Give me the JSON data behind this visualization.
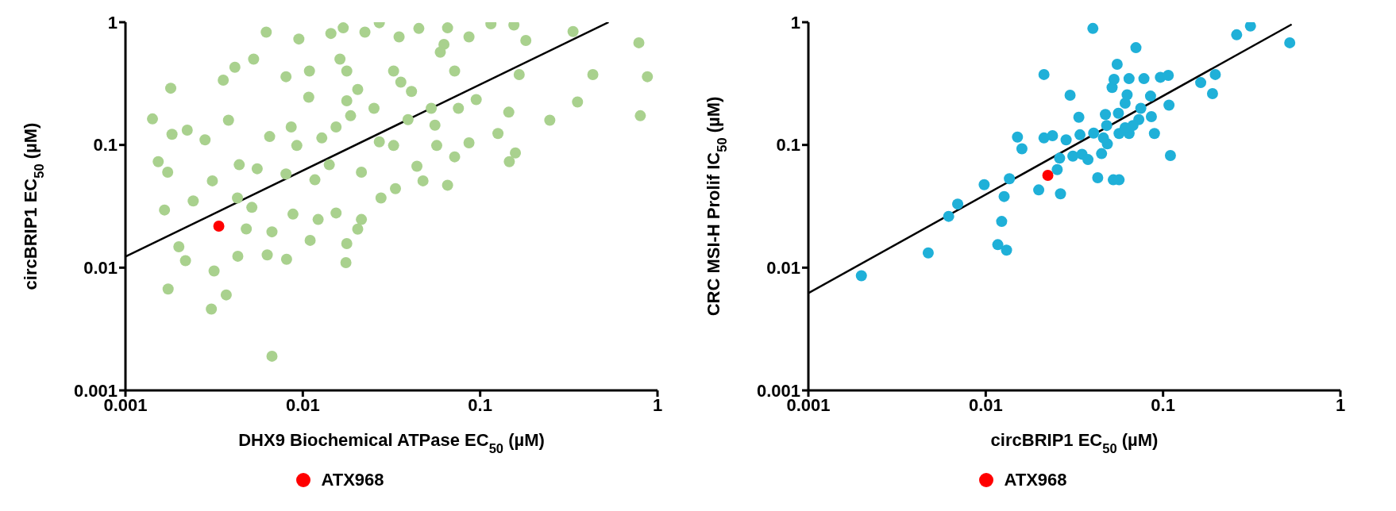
{
  "chart_data": [
    {
      "type": "scatter",
      "xlabel": "DHX9 Biochemical ATPase EC$_{50}$ (µM)",
      "ylabel": "circBRIP1 EC$_{50}$ (µM)",
      "log": "xy",
      "xlim": [
        0.001,
        1
      ],
      "ylim": [
        0.001,
        1
      ],
      "xticks": [
        0.001,
        0.01,
        0.1,
        1
      ],
      "yticks": [
        0.001,
        0.01,
        0.1,
        1
      ],
      "grid": false,
      "legend": "bottom",
      "series": [
        {
          "marker": "circle",
          "color": "#a9d18e",
          "x": [
            0.0018,
            0.00142,
            0.00183,
            0.00223,
            0.00281,
            0.00153,
            0.00173,
            0.00166,
            0.00241,
            0.00309,
            0.00381,
            0.00356,
            0.00414,
            0.00528,
            0.00622,
            0.00804,
            0.0095,
            0.0109,
            0.0108,
            0.0144,
            0.0169,
            0.0224,
            0.027,
            0.0349,
            0.0451,
            0.0655,
            0.0625,
            0.0865,
            0.115,
            0.155,
            0.181,
            0.334,
            0.785,
            0.877,
            0.8,
            0.432,
            0.354,
            0.247,
            0.145,
            0.126,
            0.158,
            0.146,
            0.166,
            0.095,
            0.0865,
            0.0718,
            0.0655,
            0.0476,
            0.0556,
            0.0569,
            0.044,
            0.0333,
            0.0276,
            0.0214,
            0.0204,
            0.0177,
            0.0175,
            0.0154,
            0.0122,
            0.011,
            0.0088,
            0.0081,
            0.0063,
            0.0067,
            0.0048,
            0.0043,
            0.0037,
            0.00316,
            0.00305,
            0.00174,
            0.002,
            0.00218,
            0.0067,
            0.00516,
            0.00428,
            0.00438,
            0.00553,
            0.00804,
            0.00925,
            0.0086,
            0.0128,
            0.0154,
            0.0186,
            0.0177,
            0.0204,
            0.0252,
            0.027,
            0.0325,
            0.0357,
            0.041,
            0.0177,
            0.0162,
            0.053,
            0.0718,
            0.0754,
            0.0392,
            0.0325,
            0.0214,
            0.0141,
            0.0117,
            0.0596,
            0.0065
          ],
          "values": [
            0.29,
            0.163,
            0.122,
            0.132,
            0.11,
            0.073,
            0.06,
            0.0295,
            0.035,
            0.051,
            0.159,
            0.337,
            0.43,
            0.5,
            0.83,
            0.36,
            0.73,
            0.4,
            0.245,
            0.81,
            0.9,
            0.83,
            0.99,
            0.76,
            0.89,
            0.9,
            0.66,
            0.76,
            0.97,
            0.95,
            0.71,
            0.84,
            0.68,
            0.36,
            0.173,
            0.374,
            0.224,
            0.159,
            0.185,
            0.124,
            0.086,
            0.073,
            0.374,
            0.234,
            0.104,
            0.08,
            0.047,
            0.051,
            0.145,
            0.099,
            0.067,
            0.044,
            0.037,
            0.0247,
            0.0206,
            0.0157,
            0.011,
            0.0279,
            0.0247,
            0.0167,
            0.0273,
            0.0117,
            0.0127,
            0.0196,
            0.0207,
            0.0124,
            0.006,
            0.0094,
            0.0046,
            0.0067,
            0.0148,
            0.0114,
            0.0019,
            0.031,
            0.037,
            0.069,
            0.064,
            0.058,
            0.099,
            0.14,
            0.114,
            0.14,
            0.173,
            0.229,
            0.283,
            0.199,
            0.106,
            0.4,
            0.325,
            0.273,
            0.4,
            0.5,
            0.199,
            0.4,
            0.199,
            0.161,
            0.099,
            0.06,
            0.069,
            0.052,
            0.57,
            0.117
          ]
        },
        {
          "type": "line",
          "marker": "none",
          "color": "#000000",
          "x": [
            0.001,
            0.53
          ],
          "values": [
            0.0123,
            1
          ]
        },
        {
          "name": "ATX968",
          "marker": "circle",
          "color": "#ff0000",
          "x": [
            0.00336
          ],
          "values": [
            0.0218
          ]
        }
      ]
    },
    {
      "type": "scatter",
      "xlabel": "circBRIP1 EC$_{50}$ (µM)",
      "ylabel": "CRC MSI-H Prolif IC$_{50}$ (µM)",
      "log": "xy",
      "xlim": [
        0.001,
        1
      ],
      "ylim": [
        0.001,
        1
      ],
      "xticks": [
        0.001,
        0.01,
        0.1,
        1
      ],
      "yticks": [
        0.001,
        0.01,
        0.1,
        1
      ],
      "grid": false,
      "legend": "bottom",
      "series": [
        {
          "marker": "circle",
          "color": "#1fb0d8",
          "x": [
            0.00199,
            0.00474,
            0.00618,
            0.00695,
            0.0098,
            0.0136,
            0.0127,
            0.0123,
            0.0117,
            0.0131,
            0.0151,
            0.016,
            0.0213,
            0.0213,
            0.0238,
            0.0199,
            0.0253,
            0.0261,
            0.0264,
            0.0299,
            0.0284,
            0.0335,
            0.031,
            0.0349,
            0.0377,
            0.034,
            0.0406,
            0.0402,
            0.0428,
            0.045,
            0.0473,
            0.0481,
            0.0485,
            0.0516,
            0.0529,
            0.0551,
            0.0524,
            0.0565,
            0.056,
            0.0565,
            0.0611,
            0.0627,
            0.0643,
            0.0643,
            0.0703,
            0.073,
            0.0749,
            0.078,
            0.085,
            0.0859,
            0.0894,
            0.0966,
            0.107,
            0.108,
            0.11,
            0.0676,
            0.163,
            0.19,
            0.197,
            0.26,
            0.311,
            0.518,
            0.0611,
            0.0461
          ],
          "values": [
            0.0086,
            0.0132,
            0.0262,
            0.033,
            0.0474,
            0.053,
            0.038,
            0.0238,
            0.0154,
            0.0139,
            0.116,
            0.093,
            0.375,
            0.114,
            0.119,
            0.043,
            0.063,
            0.078,
            0.04,
            0.254,
            0.11,
            0.168,
            0.081,
            0.084,
            0.076,
            0.121,
            0.125,
            0.89,
            0.054,
            0.085,
            0.177,
            0.144,
            0.102,
            0.294,
            0.342,
            0.454,
            0.052,
            0.052,
            0.181,
            0.124,
            0.219,
            0.256,
            0.347,
            0.124,
            0.62,
            0.161,
            0.199,
            0.347,
            0.25,
            0.17,
            0.124,
            0.356,
            0.369,
            0.211,
            0.082,
            0.144,
            0.322,
            0.262,
            0.375,
            0.79,
            0.93,
            0.68,
            0.138,
            0.114
          ]
        },
        {
          "type": "line",
          "marker": "none",
          "color": "#000000",
          "x": [
            0.001,
            0.531
          ],
          "values": [
            0.0062,
            0.96
          ]
        },
        {
          "name": "ATX968",
          "marker": "circle",
          "color": "#ff0000",
          "x": [
            0.0224
          ],
          "values": [
            0.0565
          ]
        }
      ]
    }
  ]
}
